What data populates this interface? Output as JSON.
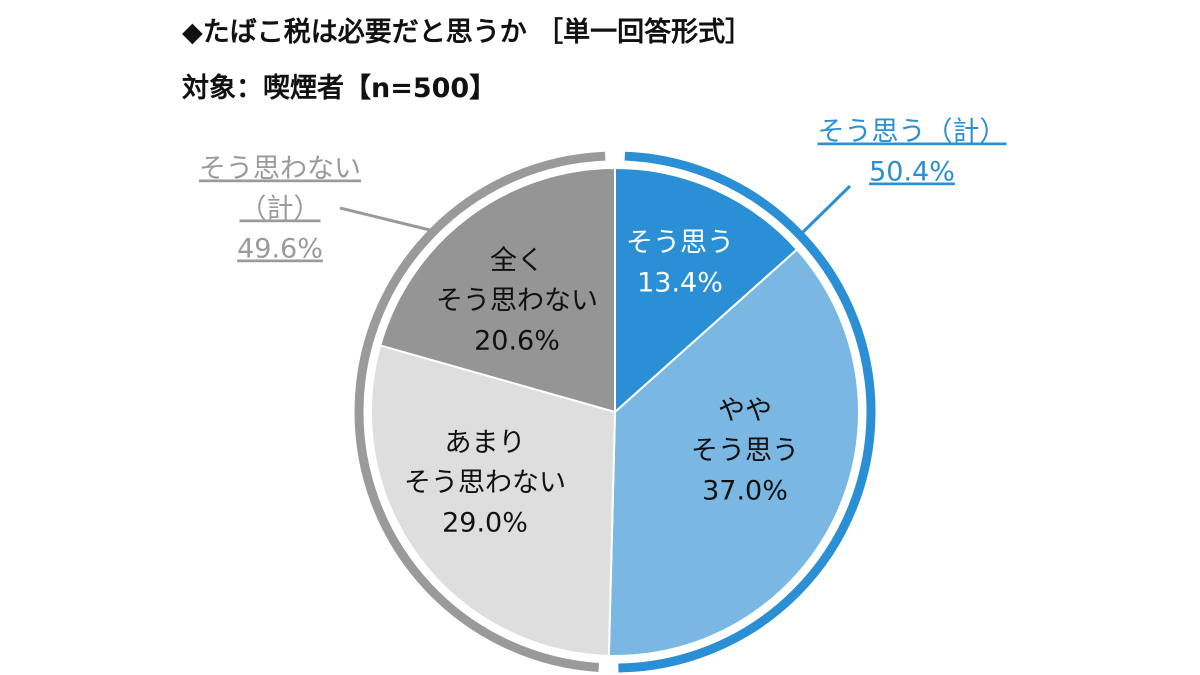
{
  "header": {
    "title": "◆たばこ税は必要だと思うか ［単一回答形式］",
    "subtitle": "対象：喫煙者【n=500】"
  },
  "chart_data": {
    "type": "pie",
    "categories": [
      "そう思う",
      "ややそう思う",
      "あまりそう思わない",
      "全くそう思わない"
    ],
    "values": [
      13.4,
      37.0,
      29.0,
      20.6
    ],
    "unit": "%",
    "slices": [
      {
        "label_lines": [
          "そう思う"
        ],
        "value_text": "13.4%",
        "value": 13.4,
        "color": "#2a8fd4",
        "text_color": "#ffffff"
      },
      {
        "label_lines": [
          "やや",
          "そう思う"
        ],
        "value_text": "37.0%",
        "value": 37.0,
        "color": "#7ab8e3",
        "text_color": "#111111"
      },
      {
        "label_lines": [
          "あまり",
          "そう思わない"
        ],
        "value_text": "29.0%",
        "value": 29.0,
        "color": "#dedede",
        "text_color": "#111111"
      },
      {
        "label_lines": [
          "全く",
          "そう思わない"
        ],
        "value_text": "20.6%",
        "value": 20.6,
        "color": "#959595",
        "text_color": "#111111"
      }
    ],
    "groups": [
      {
        "lines": [
          "そう思う（計）",
          "50.4%"
        ],
        "value": 50.4,
        "color": "#2a8fd4"
      },
      {
        "lines": [
          "そう思わない",
          "（計）",
          "49.6%"
        ],
        "value": 49.6,
        "color": "#9a9a9a"
      }
    ],
    "start_angle": "12 o'clock, clockwise",
    "legend": "none"
  }
}
